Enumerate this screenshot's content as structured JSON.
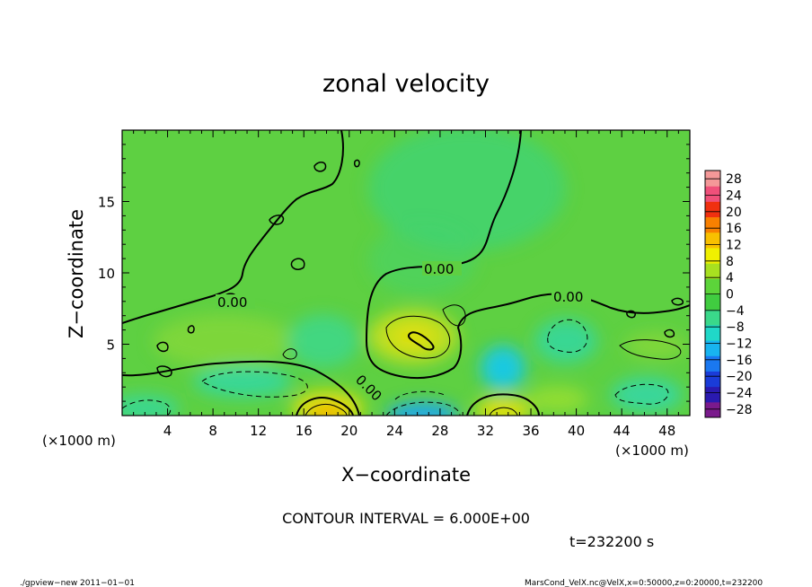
{
  "chart_data": {
    "type": "heatmap",
    "title": "zonal velocity",
    "xlabel": "X−coordinate",
    "ylabel": "Z−coordinate",
    "x_unit_label": "(×1000 m)",
    "y_unit_label": "(×1000 m)",
    "xlim": [
      0,
      50
    ],
    "ylim": [
      0,
      20
    ],
    "x_ticks": [
      4,
      8,
      12,
      16,
      20,
      24,
      28,
      32,
      36,
      40,
      44,
      48
    ],
    "y_ticks": [
      5,
      10,
      15
    ],
    "colorbar": {
      "min": -30,
      "max": 30,
      "ticks": [
        "28",
        "24",
        "20",
        "16",
        "12",
        "8",
        "4",
        "0",
        "−4",
        "−8",
        "−12",
        "−16",
        "−20",
        "−24",
        "−28"
      ],
      "colors": [
        "#7a1a8c",
        "#2a1ab0",
        "#1a3cd8",
        "#1a78f0",
        "#18b4f0",
        "#20d8c8",
        "#3ad88a",
        "#40cc40",
        "#5cd43a",
        "#a8e020",
        "#f0f000",
        "#f8c000",
        "#f88000",
        "#f03010",
        "#f0507a",
        "#f49898"
      ]
    },
    "contour_interval_text": "CONTOUR INTERVAL = 6.000E+00",
    "contour_labels": [
      "0.00",
      "0.00",
      "0.00",
      "0.00"
    ],
    "features": [
      {
        "kind": "positive max",
        "x": 26,
        "z": 5.5,
        "value": 8
      },
      {
        "kind": "negative min",
        "x": 33,
        "z": 3,
        "value": -9
      },
      {
        "kind": "positive max",
        "x": 19,
        "z": 0.5,
        "value": 10
      },
      {
        "kind": "negative min",
        "x": 26.5,
        "z": 0.3,
        "value": -12
      },
      {
        "kind": "positive max",
        "x": 33.5,
        "z": 0.5,
        "value": 9
      }
    ],
    "time_text": "t=232200 s",
    "grid": false,
    "legend": "right colorbar"
  },
  "footer": {
    "left": "./gpview−new   2011−01−01",
    "right": "MarsCond_VelX.nc@VelX,x=0:50000,z=0:20000,t=232200"
  }
}
